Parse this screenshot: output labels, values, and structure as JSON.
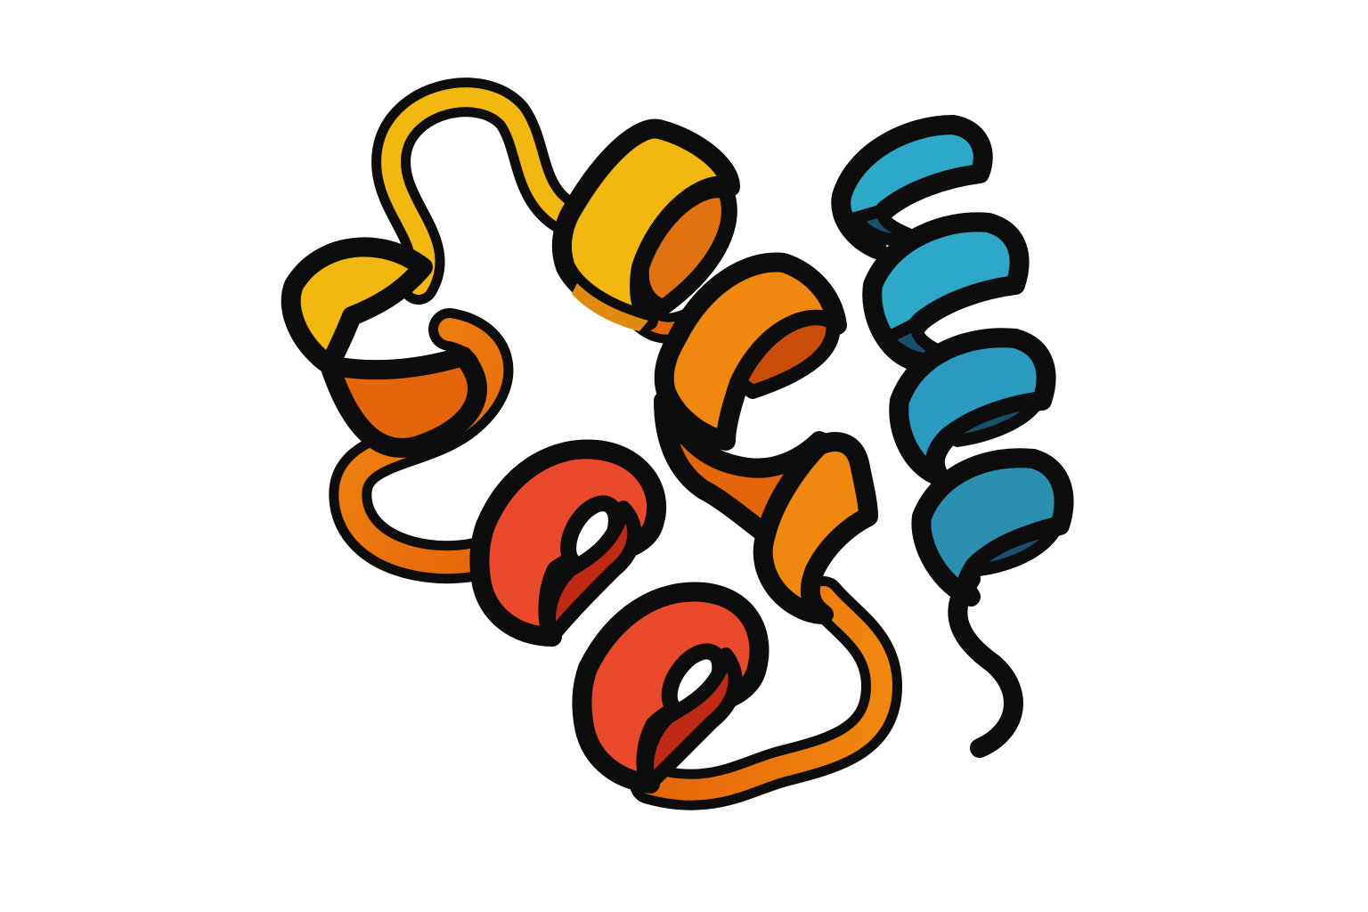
{
  "illustration": {
    "subject": "protein-ribbon-icon",
    "style": "flat cartoon with thick black outline",
    "background_color": "#ffffff",
    "outline_color": "#0d0d0d"
  },
  "palette": {
    "yellow": "#f2b80f",
    "yellow_dark": "#e08a10",
    "orange_light": "#f0870e",
    "orange": "#e5650a",
    "orange_dark": "#c94d08",
    "red": "#ea4a2b",
    "red_dark": "#c02a15",
    "blue": "#2ea8c8",
    "blue_mid": "#2a8fb0",
    "blue_dark": "#17506d"
  },
  "segments": [
    {
      "id": "helix-a",
      "color_key": "yellow",
      "turns": 2
    },
    {
      "id": "helix-b",
      "color_key": "orange",
      "turns": 3
    },
    {
      "id": "helix-c",
      "color_key": "red",
      "turns": 2
    },
    {
      "id": "helix-d",
      "color_key": "blue",
      "turns": 4
    }
  ]
}
